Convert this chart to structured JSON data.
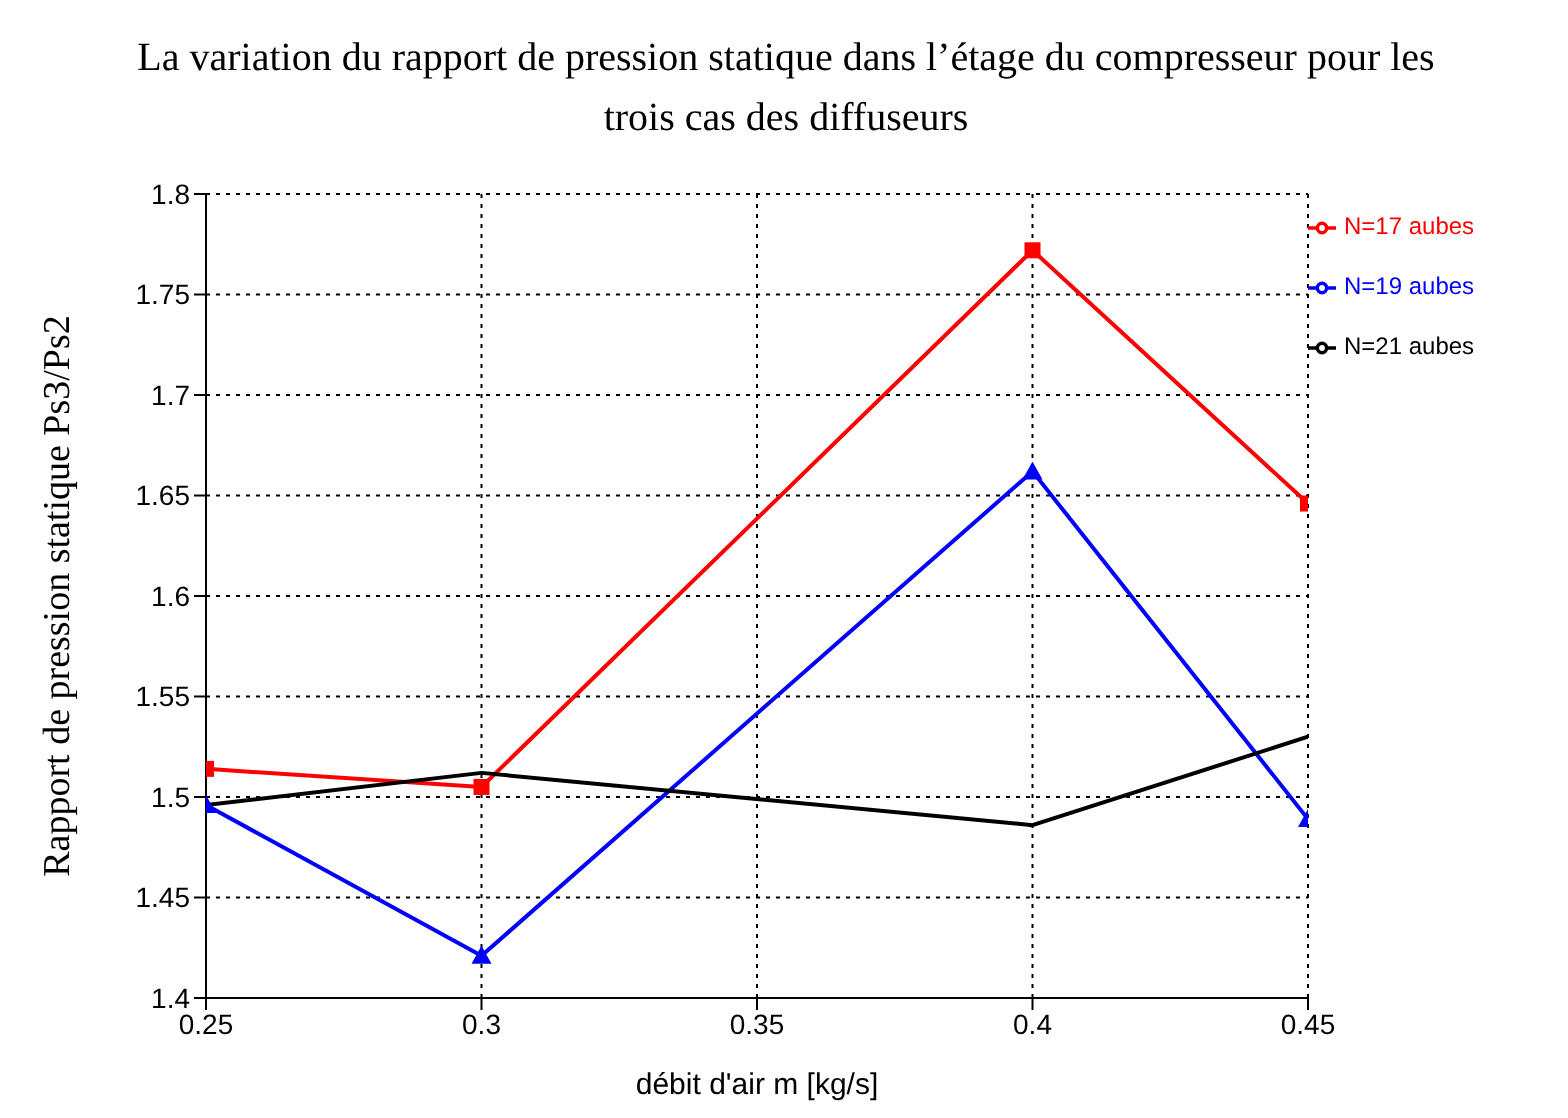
{
  "chart_data": {
    "type": "line",
    "title": "La variation du rapport de pression  statique dans l’étage du compresseur pour les trois cas des diffuseurs",
    "xlabel": "débit d'air m [kg/s]",
    "ylabel": "Rapport de pression statique Ps3/Ps2",
    "x": [
      0.25,
      0.3,
      0.4,
      0.45
    ],
    "series": [
      {
        "name": "N=17 aubes",
        "color": "#ff0000",
        "marker": "square",
        "values": [
          1.514,
          1.505,
          1.772,
          1.646
        ]
      },
      {
        "name": "N=19 aubes",
        "color": "#0000ff",
        "marker": "triangle",
        "values": [
          1.496,
          1.421,
          1.662,
          1.489
        ]
      },
      {
        "name": "N=21 aubes",
        "color": "#000000",
        "marker": "none",
        "values": [
          1.496,
          1.512,
          1.486,
          1.53
        ]
      }
    ],
    "xlim": [
      0.25,
      0.45
    ],
    "xticks": [
      0.25,
      0.3,
      0.35,
      0.4,
      0.45
    ],
    "ylim": [
      1.4,
      1.8
    ],
    "yticks": [
      1.4,
      1.45,
      1.5,
      1.55,
      1.6,
      1.65,
      1.7,
      1.75,
      1.8
    ],
    "grid": true,
    "legend": "top right",
    "line_style": "solid"
  }
}
